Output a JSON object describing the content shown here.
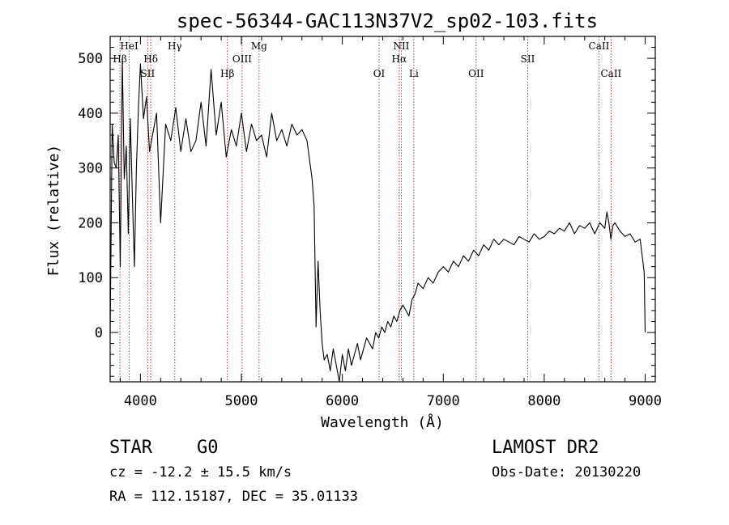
{
  "chart_data": {
    "type": "line",
    "title": "spec-56344-GAC113N37V2_sp02-103.fits",
    "xlabel": "Wavelength (Å)",
    "ylabel": "Flux (relative)",
    "xlim": [
      3700,
      9100
    ],
    "ylim": [
      -90,
      540
    ],
    "x_ticks": [
      4000,
      5000,
      6000,
      7000,
      8000,
      9000
    ],
    "y_ticks": [
      0,
      100,
      200,
      300,
      400,
      500
    ],
    "grid": false,
    "series": [
      {
        "x": [
          3700,
          3720,
          3740,
          3760,
          3780,
          3800,
          3820,
          3840,
          3860,
          3880,
          3900,
          3920,
          3940,
          3960,
          3980,
          4000,
          4030,
          4060,
          4090,
          4120,
          4160,
          4200,
          4250,
          4300,
          4350,
          4400,
          4450,
          4500,
          4550,
          4600,
          4650,
          4700,
          4750,
          4800,
          4850,
          4900,
          4950,
          5000,
          5050,
          5100,
          5150,
          5200,
          5250,
          5300,
          5350,
          5400,
          5450,
          5500,
          5550,
          5600,
          5650,
          5700,
          5720,
          5740,
          5760,
          5780,
          5800,
          5820,
          5850,
          5880,
          5910,
          5940,
          5970,
          6000,
          6030,
          6060,
          6090,
          6120,
          6150,
          6180,
          6210,
          6240,
          6270,
          6300,
          6330,
          6360,
          6390,
          6420,
          6450,
          6480,
          6510,
          6540,
          6570,
          6600,
          6630,
          6660,
          6690,
          6720,
          6750,
          6800,
          6850,
          6900,
          6950,
          7000,
          7050,
          7100,
          7150,
          7200,
          7250,
          7300,
          7350,
          7400,
          7450,
          7500,
          7550,
          7600,
          7650,
          7700,
          7750,
          7800,
          7850,
          7900,
          7950,
          8000,
          8050,
          8100,
          8150,
          8200,
          8250,
          8300,
          8350,
          8400,
          8450,
          8500,
          8550,
          8600,
          8620,
          8640,
          8660,
          8680,
          8700,
          8750,
          8800,
          8850,
          8900,
          8950,
          8990,
          9000
        ],
        "y": [
          0,
          380,
          310,
          300,
          360,
          120,
          500,
          280,
          340,
          180,
          390,
          250,
          120,
          300,
          410,
          490,
          390,
          430,
          330,
          360,
          400,
          200,
          380,
          350,
          410,
          330,
          390,
          330,
          350,
          420,
          340,
          480,
          360,
          420,
          320,
          370,
          340,
          400,
          330,
          380,
          350,
          360,
          320,
          400,
          350,
          370,
          340,
          380,
          360,
          370,
          350,
          280,
          230,
          10,
          130,
          40,
          -20,
          -50,
          -40,
          -70,
          -30,
          -60,
          -90,
          -40,
          -70,
          -30,
          -60,
          -40,
          -20,
          -50,
          -30,
          -10,
          -20,
          -30,
          0,
          -10,
          10,
          0,
          20,
          10,
          30,
          20,
          40,
          50,
          40,
          30,
          60,
          70,
          90,
          80,
          100,
          90,
          110,
          120,
          110,
          130,
          120,
          140,
          130,
          150,
          140,
          160,
          150,
          170,
          160,
          170,
          165,
          160,
          175,
          170,
          165,
          180,
          170,
          175,
          185,
          180,
          190,
          185,
          200,
          180,
          195,
          190,
          200,
          180,
          200,
          190,
          220,
          200,
          170,
          195,
          200,
          185,
          175,
          180,
          165,
          170,
          110,
          0
        ]
      }
    ],
    "line_markers": [
      {
        "label": "HeI",
        "x": 3889,
        "row": 1
      },
      {
        "label": "Hβ",
        "x": 3797,
        "row": 2
      },
      {
        "label": "Hδ",
        "x": 4102,
        "row": 2
      },
      {
        "label": "SII",
        "x": 4072,
        "row": 3
      },
      {
        "label": "Hγ",
        "x": 4340,
        "row": 1
      },
      {
        "label": "Hβ",
        "x": 4861,
        "row": 3
      },
      {
        "label": "OIII",
        "x": 5007,
        "row": 2
      },
      {
        "label": "Mg",
        "x": 5175,
        "row": 1
      },
      {
        "label": "OI",
        "x": 6364,
        "row": 3
      },
      {
        "label": "NII",
        "x": 6584,
        "row": 1
      },
      {
        "label": "Hα",
        "x": 6563,
        "row": 2
      },
      {
        "label": "Li",
        "x": 6708,
        "row": 3
      },
      {
        "label": "OII",
        "x": 7325,
        "row": 3
      },
      {
        "label": "SII",
        "x": 7836,
        "row": 2
      },
      {
        "label": "CaII",
        "x": 8542,
        "row": 1
      },
      {
        "label": "CaII",
        "x": 8662,
        "row": 3
      }
    ]
  },
  "info": {
    "class_label": "STAR",
    "subclass": "G0",
    "cz": "cz = -12.2 ± 15.5 km/s",
    "radec": "RA = 112.15187, DEC =  35.01133",
    "survey": "LAMOST DR2",
    "obs_date": "Obs-Date: 20130220"
  },
  "colors": {
    "spectrum": "#000000",
    "marker_line": "#b04040",
    "axis": "#000000"
  }
}
